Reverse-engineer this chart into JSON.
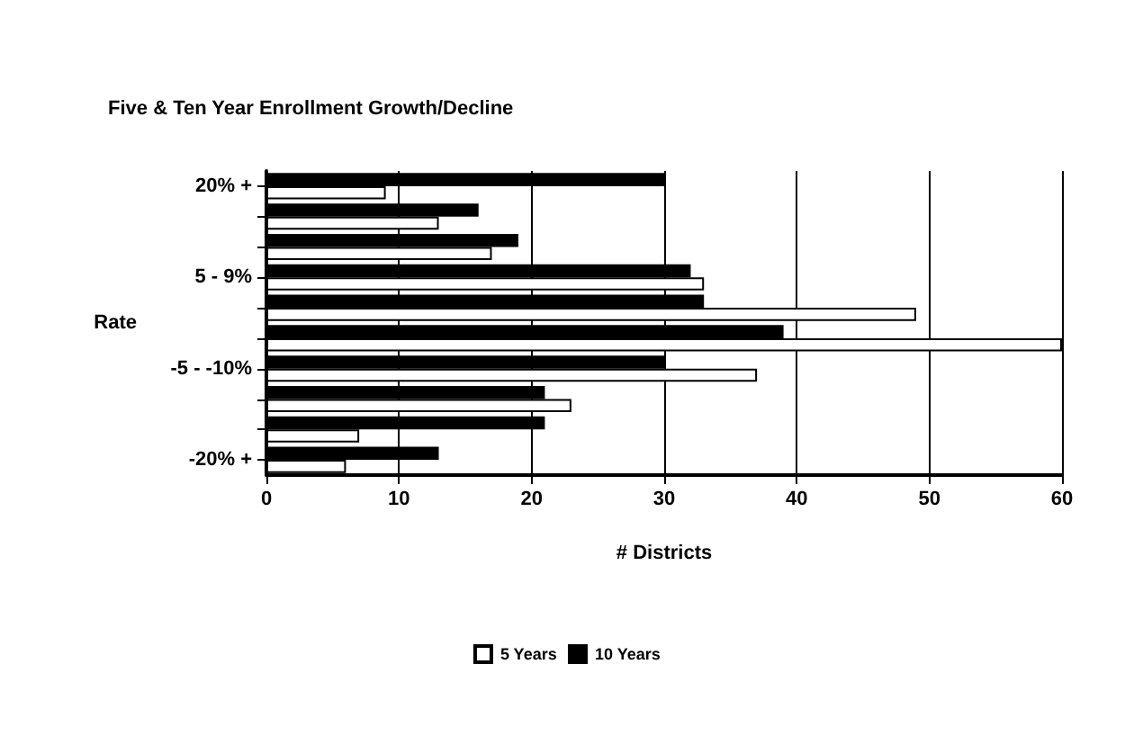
{
  "chart_data": {
    "type": "bar",
    "orientation": "horizontal",
    "title": "Five & Ten Year Enrollment Growth/Decline",
    "xlabel": "# Districts",
    "ylabel": "Rate",
    "categories": [
      "20% +",
      null,
      null,
      "5 - 9%",
      null,
      null,
      "-5 - -10%",
      null,
      null,
      "-20% +"
    ],
    "series": [
      {
        "name": "5 Years",
        "color": "#ffffff",
        "values": [
          9,
          13,
          17,
          33,
          49,
          60,
          37,
          23,
          7,
          6
        ]
      },
      {
        "name": "10 Years",
        "color": "#000000",
        "values": [
          30,
          16,
          19,
          32,
          33,
          39,
          30,
          21,
          21,
          13
        ]
      }
    ],
    "xlim": [
      0,
      60
    ],
    "xticks": [
      0,
      10,
      20,
      30,
      40,
      50,
      60
    ],
    "grid": "x",
    "legend": "bottom"
  }
}
